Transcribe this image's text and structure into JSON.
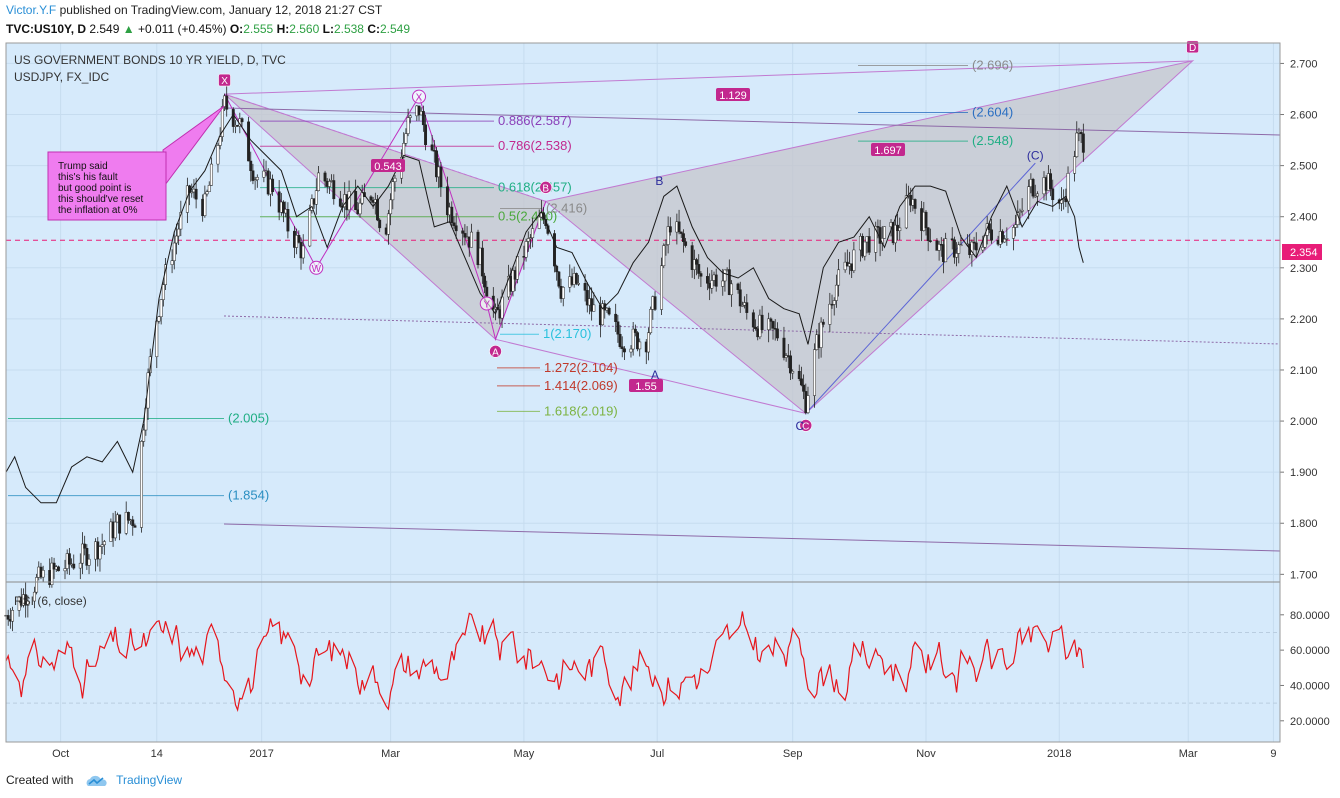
{
  "header": {
    "author": "Victor.Y.F",
    "published": "published on TradingView.com, January 12, 2018 21:27 CST",
    "symbol": "TVC:US10Y, D",
    "last": "2.549",
    "change": "+0.011 (+0.45%)",
    "o_label": "O:",
    "o": "2.555",
    "h_label": "H:",
    "h": "2.560",
    "l_label": "L:",
    "l": "2.538",
    "c_label": "C:",
    "c": "2.549"
  },
  "footer": {
    "created_with": "Created with",
    "brand": "TradingView"
  },
  "colors": {
    "chart_bg": "#d6eafb",
    "pattern_fill": "#c5c5cc",
    "pattern_line": "#c17ad1",
    "magenta": "#c2288e",
    "rsi_line": "#e6161c",
    "overlay_line": "#1a1a1a",
    "blue_line": "#5b64d6",
    "price_tag": "#e81d78"
  },
  "chart_data": [
    {
      "type": "candlestick",
      "title": "US GOVERNMENT BONDS 10 YR YIELD, D, TVC",
      "overlay_label": "USDJPY, FX_IDC",
      "x_ticks": [
        "Oct",
        "14",
        "2017",
        "Mar",
        "May",
        "Jul",
        "Sep",
        "Nov",
        "2018",
        "Mar",
        "9"
      ],
      "y_ticks": [
        "2.700",
        "2.600",
        "2.500",
        "2.400",
        "2.300",
        "2.200",
        "2.100",
        "2.000",
        "1.900",
        "1.800",
        "1.700"
      ],
      "ylim": [
        1.685,
        2.74
      ],
      "current_price": "2.354",
      "x_range": [
        "2016-09-06",
        "2018-04-12"
      ],
      "close_path": [
        [
          "2016-09-06",
          1.62
        ],
        [
          "2016-09-21",
          1.69
        ],
        [
          "2016-10-05",
          1.72
        ],
        [
          "2016-10-20",
          1.76
        ],
        [
          "2016-10-27",
          1.8
        ],
        [
          "2016-11-04",
          1.81
        ],
        [
          "2016-11-09",
          2.05
        ],
        [
          "2016-11-13",
          2.18
        ],
        [
          "2016-11-17",
          2.27
        ],
        [
          "2016-11-24",
          2.38
        ],
        [
          "2016-11-29",
          2.45
        ],
        [
          "2016-12-06",
          2.42
        ],
        [
          "2016-12-11",
          2.52
        ],
        [
          "2016-12-15",
          2.62
        ],
        [
          "2016-12-22",
          2.58
        ],
        [
          "2016-12-29",
          2.48
        ],
        [
          "2017-01-06",
          2.46
        ],
        [
          "2017-01-13",
          2.38
        ],
        [
          "2017-01-20",
          2.33
        ],
        [
          "2017-01-27",
          2.48
        ],
        [
          "2017-02-03",
          2.46
        ],
        [
          "2017-02-13",
          2.41
        ],
        [
          "2017-02-21",
          2.45
        ],
        [
          "2017-02-26",
          2.36
        ],
        [
          "2017-03-02",
          2.46
        ],
        [
          "2017-03-09",
          2.58
        ],
        [
          "2017-03-14",
          2.61
        ],
        [
          "2017-03-20",
          2.52
        ],
        [
          "2017-03-27",
          2.42
        ],
        [
          "2017-04-03",
          2.38
        ],
        [
          "2017-04-10",
          2.33
        ],
        [
          "2017-04-18",
          2.2
        ],
        [
          "2017-04-24",
          2.26
        ],
        [
          "2017-05-01",
          2.33
        ],
        [
          "2017-05-08",
          2.39
        ],
        [
          "2017-05-11",
          2.4
        ],
        [
          "2017-05-18",
          2.26
        ],
        [
          "2017-05-25",
          2.27
        ],
        [
          "2017-06-01",
          2.22
        ],
        [
          "2017-06-08",
          2.2
        ],
        [
          "2017-06-15",
          2.16
        ],
        [
          "2017-06-26",
          2.16
        ],
        [
          "2017-07-03",
          2.3
        ],
        [
          "2017-07-07",
          2.39
        ],
        [
          "2017-07-14",
          2.34
        ],
        [
          "2017-07-21",
          2.28
        ],
        [
          "2017-07-28",
          2.28
        ],
        [
          "2017-08-04",
          2.27
        ],
        [
          "2017-08-11",
          2.21
        ],
        [
          "2017-08-18",
          2.18
        ],
        [
          "2017-08-25",
          2.17
        ],
        [
          "2017-09-01",
          2.11
        ],
        [
          "2017-09-07",
          2.04
        ],
        [
          "2017-09-12",
          2.15
        ],
        [
          "2017-09-20",
          2.26
        ],
        [
          "2017-09-27",
          2.31
        ],
        [
          "2017-10-04",
          2.35
        ],
        [
          "2017-10-11",
          2.36
        ],
        [
          "2017-10-18",
          2.37
        ],
        [
          "2017-10-25",
          2.44
        ],
        [
          "2017-11-01",
          2.38
        ],
        [
          "2017-11-08",
          2.33
        ],
        [
          "2017-11-15",
          2.34
        ],
        [
          "2017-11-22",
          2.33
        ],
        [
          "2017-11-29",
          2.37
        ],
        [
          "2017-12-06",
          2.37
        ],
        [
          "2017-12-12",
          2.38
        ],
        [
          "2017-12-19",
          2.46
        ],
        [
          "2017-12-26",
          2.47
        ],
        [
          "2018-01-02",
          2.42
        ],
        [
          "2018-01-05",
          2.47
        ],
        [
          "2018-01-09",
          2.55
        ],
        [
          "2018-01-12",
          2.55
        ]
      ],
      "usdjpy_overlay_path": [
        [
          "2016-09-06",
          1.9
        ],
        [
          "2016-09-10",
          1.93
        ],
        [
          "2016-09-15",
          1.87
        ],
        [
          "2016-09-22",
          1.84
        ],
        [
          "2016-09-29",
          1.84
        ],
        [
          "2016-10-06",
          1.91
        ],
        [
          "2016-10-13",
          1.93
        ],
        [
          "2016-10-20",
          1.92
        ],
        [
          "2016-10-27",
          1.96
        ],
        [
          "2016-11-03",
          1.9
        ],
        [
          "2016-11-08",
          2.0
        ],
        [
          "2016-11-15",
          2.24
        ],
        [
          "2016-11-22",
          2.37
        ],
        [
          "2016-11-29",
          2.45
        ],
        [
          "2016-12-06",
          2.49
        ],
        [
          "2016-12-13",
          2.56
        ],
        [
          "2016-12-19",
          2.6
        ],
        [
          "2016-12-27",
          2.55
        ],
        [
          "2017-01-03",
          2.52
        ],
        [
          "2017-01-10",
          2.49
        ],
        [
          "2017-01-17",
          2.4
        ],
        [
          "2017-01-24",
          2.42
        ],
        [
          "2017-01-31",
          2.34
        ],
        [
          "2017-02-07",
          2.42
        ],
        [
          "2017-02-14",
          2.46
        ],
        [
          "2017-02-21",
          2.42
        ],
        [
          "2017-02-28",
          2.46
        ],
        [
          "2017-03-07",
          2.52
        ],
        [
          "2017-03-14",
          2.51
        ],
        [
          "2017-03-21",
          2.38
        ],
        [
          "2017-03-28",
          2.39
        ],
        [
          "2017-04-04",
          2.32
        ],
        [
          "2017-04-11",
          2.25
        ],
        [
          "2017-04-18",
          2.21
        ],
        [
          "2017-04-25",
          2.29
        ],
        [
          "2017-05-02",
          2.37
        ],
        [
          "2017-05-09",
          2.41
        ],
        [
          "2017-05-16",
          2.34
        ],
        [
          "2017-05-23",
          2.33
        ],
        [
          "2017-05-30",
          2.27
        ],
        [
          "2017-06-06",
          2.22
        ],
        [
          "2017-06-13",
          2.25
        ],
        [
          "2017-06-20",
          2.31
        ],
        [
          "2017-06-27",
          2.35
        ],
        [
          "2017-07-04",
          2.44
        ],
        [
          "2017-07-10",
          2.46
        ],
        [
          "2017-07-17",
          2.38
        ],
        [
          "2017-07-24",
          2.32
        ],
        [
          "2017-07-31",
          2.29
        ],
        [
          "2017-08-07",
          2.28
        ],
        [
          "2017-08-14",
          2.3
        ],
        [
          "2017-08-21",
          2.24
        ],
        [
          "2017-08-28",
          2.22
        ],
        [
          "2017-09-04",
          2.21
        ],
        [
          "2017-09-08",
          2.15
        ],
        [
          "2017-09-15",
          2.3
        ],
        [
          "2017-09-22",
          2.35
        ],
        [
          "2017-09-29",
          2.36
        ],
        [
          "2017-10-06",
          2.4
        ],
        [
          "2017-10-13",
          2.34
        ],
        [
          "2017-10-20",
          2.42
        ],
        [
          "2017-10-27",
          2.46
        ],
        [
          "2017-11-03",
          2.46
        ],
        [
          "2017-11-10",
          2.45
        ],
        [
          "2017-11-17",
          2.36
        ],
        [
          "2017-11-24",
          2.32
        ],
        [
          "2017-12-01",
          2.4
        ],
        [
          "2017-12-08",
          2.46
        ],
        [
          "2017-12-15",
          2.38
        ],
        [
          "2017-12-22",
          2.43
        ],
        [
          "2017-12-29",
          2.42
        ],
        [
          "2018-01-04",
          2.44
        ],
        [
          "2018-01-08",
          2.4
        ],
        [
          "2018-01-10",
          2.34
        ],
        [
          "2018-01-12",
          2.31
        ]
      ],
      "pattern_points": [
        {
          "label": "X",
          "date": "2016-12-15",
          "value": 2.64
        },
        {
          "label": "A",
          "date": "2017-04-18",
          "value": 2.16
        },
        {
          "label": "B",
          "date": "2017-05-11",
          "value": 2.43
        },
        {
          "label": "C",
          "date": "2017-09-07",
          "value": 2.015
        },
        {
          "label": "D",
          "date": "2018-03-03",
          "value": 2.705
        }
      ],
      "inner_points": [
        {
          "label": "W",
          "date": "2017-01-26",
          "value": 2.3
        },
        {
          "label": "X",
          "date": "2017-03-14",
          "value": 2.635
        },
        {
          "label": "Y",
          "date": "2017-04-14",
          "value": 2.23
        },
        {
          "label": "A",
          "date": "2017-06-30",
          "value": 2.09
        },
        {
          "label": "B",
          "date": "2017-07-02",
          "value": 2.47
        },
        {
          "label": "C",
          "date": "2017-09-07",
          "value": 1.99
        },
        {
          "label": "(C)",
          "date": "2017-12-21",
          "value": 2.52
        }
      ],
      "ratio_badges": [
        "1.129",
        "0.543",
        "1.697",
        "1.55"
      ],
      "fib_levels": [
        {
          "label": "0.886(2.587)",
          "value": 2.587,
          "color": "#8a3fb8"
        },
        {
          "label": "0.786(2.538)",
          "value": 2.538,
          "color": "#c2288e"
        },
        {
          "label": "0.618(2.457)",
          "value": 2.457,
          "color": "#1fae84"
        },
        {
          "label": "0.5(2.400)",
          "value": 2.4,
          "color": "#4aa83a"
        },
        {
          "label": "(2.416)",
          "value": 2.416,
          "color": "#8a8a8a"
        },
        {
          "label": "1(2.170)",
          "value": 2.17,
          "color": "#2ac1dd"
        },
        {
          "label": "1.272(2.104)",
          "value": 2.104,
          "color": "#c0392b"
        },
        {
          "label": "1.414(2.069)",
          "value": 2.069,
          "color": "#c0392b"
        },
        {
          "label": "1.618(2.019)",
          "value": 2.019,
          "color": "#7cb342"
        },
        {
          "label": "(2.005)",
          "value": 2.005,
          "color": "#1fae84"
        },
        {
          "label": "(1.854)",
          "value": 1.854,
          "color": "#2b8fc2"
        },
        {
          "label": "(2.696)",
          "value": 2.696,
          "color": "#8a8a8a"
        },
        {
          "label": "(2.604)",
          "value": 2.604,
          "color": "#2b6fc2"
        },
        {
          "label": "(2.548)",
          "value": 2.548,
          "color": "#1fae84"
        }
      ],
      "annotation": "Trump said\nthis's his fault\nbut good point is\nthis should've reset\nthe inflation at 0%"
    },
    {
      "type": "line",
      "title": "RSI (6, close)",
      "y_ticks": [
        "80.0000",
        "60.0000",
        "40.0000",
        "20.0000"
      ],
      "ylim": [
        8,
        98
      ],
      "guide_lines": [
        70,
        30
      ],
      "note": "Oscillating RSI series"
    }
  ]
}
